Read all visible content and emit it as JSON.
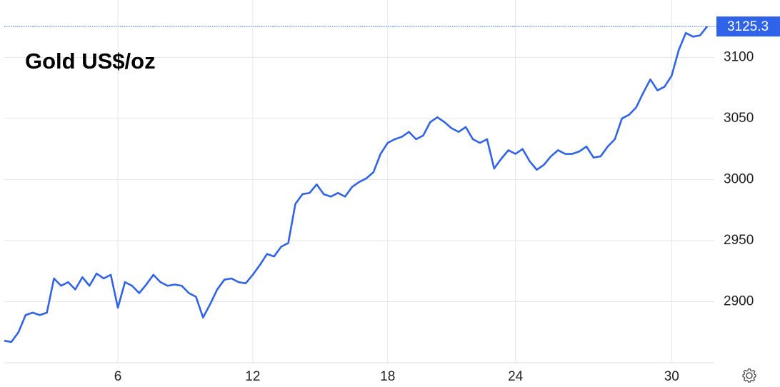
{
  "chart_data": {
    "type": "line",
    "title": "Gold US$/oz",
    "categories": [
      null,
      null,
      null,
      null,
      null,
      null,
      null,
      null,
      null,
      null,
      null,
      null,
      null,
      null,
      null,
      null,
      "6",
      null,
      null,
      null,
      null,
      null,
      null,
      null,
      null,
      null,
      null,
      null,
      null,
      null,
      null,
      null,
      null,
      null,
      null,
      "12",
      null,
      null,
      null,
      null,
      null,
      null,
      null,
      null,
      null,
      null,
      null,
      null,
      null,
      null,
      null,
      null,
      null,
      null,
      "18",
      null,
      null,
      null,
      null,
      null,
      null,
      null,
      null,
      null,
      null,
      null,
      null,
      null,
      null,
      null,
      null,
      null,
      "24",
      null,
      null,
      null,
      null,
      null,
      null,
      null,
      null,
      null,
      null,
      null,
      null,
      null,
      null,
      null,
      null,
      null,
      null,
      null,
      null,
      null,
      "30",
      null,
      null,
      null,
      null,
      null
    ],
    "series": [
      {
        "color": "#2f63e9",
        "values": [
          2868,
          2867,
          2875,
          2889,
          2891,
          2889,
          2891,
          2919,
          2913,
          2916,
          2910,
          2920,
          2913,
          2923,
          2919,
          2922,
          2895,
          2916,
          2913,
          2907,
          2914,
          2922,
          2916,
          2913,
          2914,
          2913,
          2907,
          2904,
          2887,
          2898,
          2910,
          2918,
          2919,
          2916,
          2915,
          2922,
          2930,
          2939,
          2937,
          2945,
          2948,
          2980,
          2988,
          2989,
          2996,
          2988,
          2986,
          2989,
          2986,
          2994,
          2998,
          3001,
          3006,
          3021,
          3030,
          3033,
          3035,
          3039,
          3033,
          3036,
          3047,
          3051,
          3047,
          3042,
          3039,
          3043,
          3033,
          3030,
          3033,
          3009,
          3017,
          3024,
          3021,
          3025,
          3015,
          3008,
          3012,
          3019,
          3024,
          3021,
          3021,
          3023,
          3027,
          3018,
          3019,
          3027,
          3033,
          3050,
          3053,
          3059,
          3071,
          3082,
          3073,
          3076,
          3085,
          3106,
          3120,
          3117,
          3118,
          3125.3
        ],
        "value_labels": [
          null,
          null,
          null,
          null,
          null,
          null,
          null,
          null,
          null,
          null,
          null,
          null,
          null,
          null,
          null,
          null,
          null,
          null,
          null,
          null,
          null,
          null,
          null,
          null,
          null,
          null,
          null,
          null,
          null,
          null,
          null,
          null,
          null,
          null,
          null,
          null,
          null,
          null,
          null,
          null,
          null,
          null,
          null,
          null,
          null,
          null,
          null,
          null,
          null,
          null,
          null,
          null,
          null,
          null,
          null,
          null,
          null,
          null,
          null,
          null,
          null,
          null,
          null,
          null,
          null,
          null,
          null,
          null,
          null,
          null,
          null,
          null,
          null,
          null,
          null,
          null,
          null,
          null,
          null,
          null,
          null,
          null,
          null,
          null,
          null,
          null,
          null,
          null,
          null,
          null,
          null,
          null,
          null,
          null,
          null,
          null,
          null,
          null,
          null,
          "3125.3"
        ]
      }
    ],
    "ylim": [
      2850,
      3147
    ],
    "yticks": [
      2900,
      2950,
      3000,
      3050,
      3100
    ],
    "grid": true
  }
}
